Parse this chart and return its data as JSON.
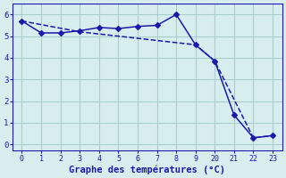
{
  "line1_x": [
    0,
    1,
    2,
    3,
    4,
    5,
    6,
    7,
    8,
    9,
    10,
    11,
    12,
    13
  ],
  "line1_y": [
    5.7,
    5.15,
    5.15,
    5.25,
    5.4,
    5.35,
    5.45,
    5.5,
    6.0,
    4.6,
    3.85,
    1.35,
    0.3,
    0.4
  ],
  "line2_x": [
    0,
    3,
    9,
    10,
    12,
    13
  ],
  "line2_y": [
    5.7,
    5.2,
    4.6,
    3.85,
    0.3,
    0.4
  ],
  "xtick_positions": [
    0,
    1,
    2,
    3,
    4,
    5,
    6,
    7,
    8,
    9,
    10,
    11,
    12,
    13
  ],
  "xtick_labels": [
    "0",
    "1",
    "2",
    "3",
    "4",
    "5",
    "6",
    "7",
    "8",
    "9",
    "20",
    "21",
    "22",
    "23"
  ],
  "yticks": [
    0,
    1,
    2,
    3,
    4,
    5,
    6
  ],
  "color": "#1a1aaa",
  "bg_color": "#d8eeee",
  "grid_color": "#aacece",
  "xlabel": "Graphe des températures (°C)",
  "xlabel_fontsize": 7.5,
  "xlim": [
    -0.5,
    13.5
  ],
  "ylim": [
    -0.3,
    6.5
  ],
  "markersize": 3.0,
  "linewidth": 1.1
}
